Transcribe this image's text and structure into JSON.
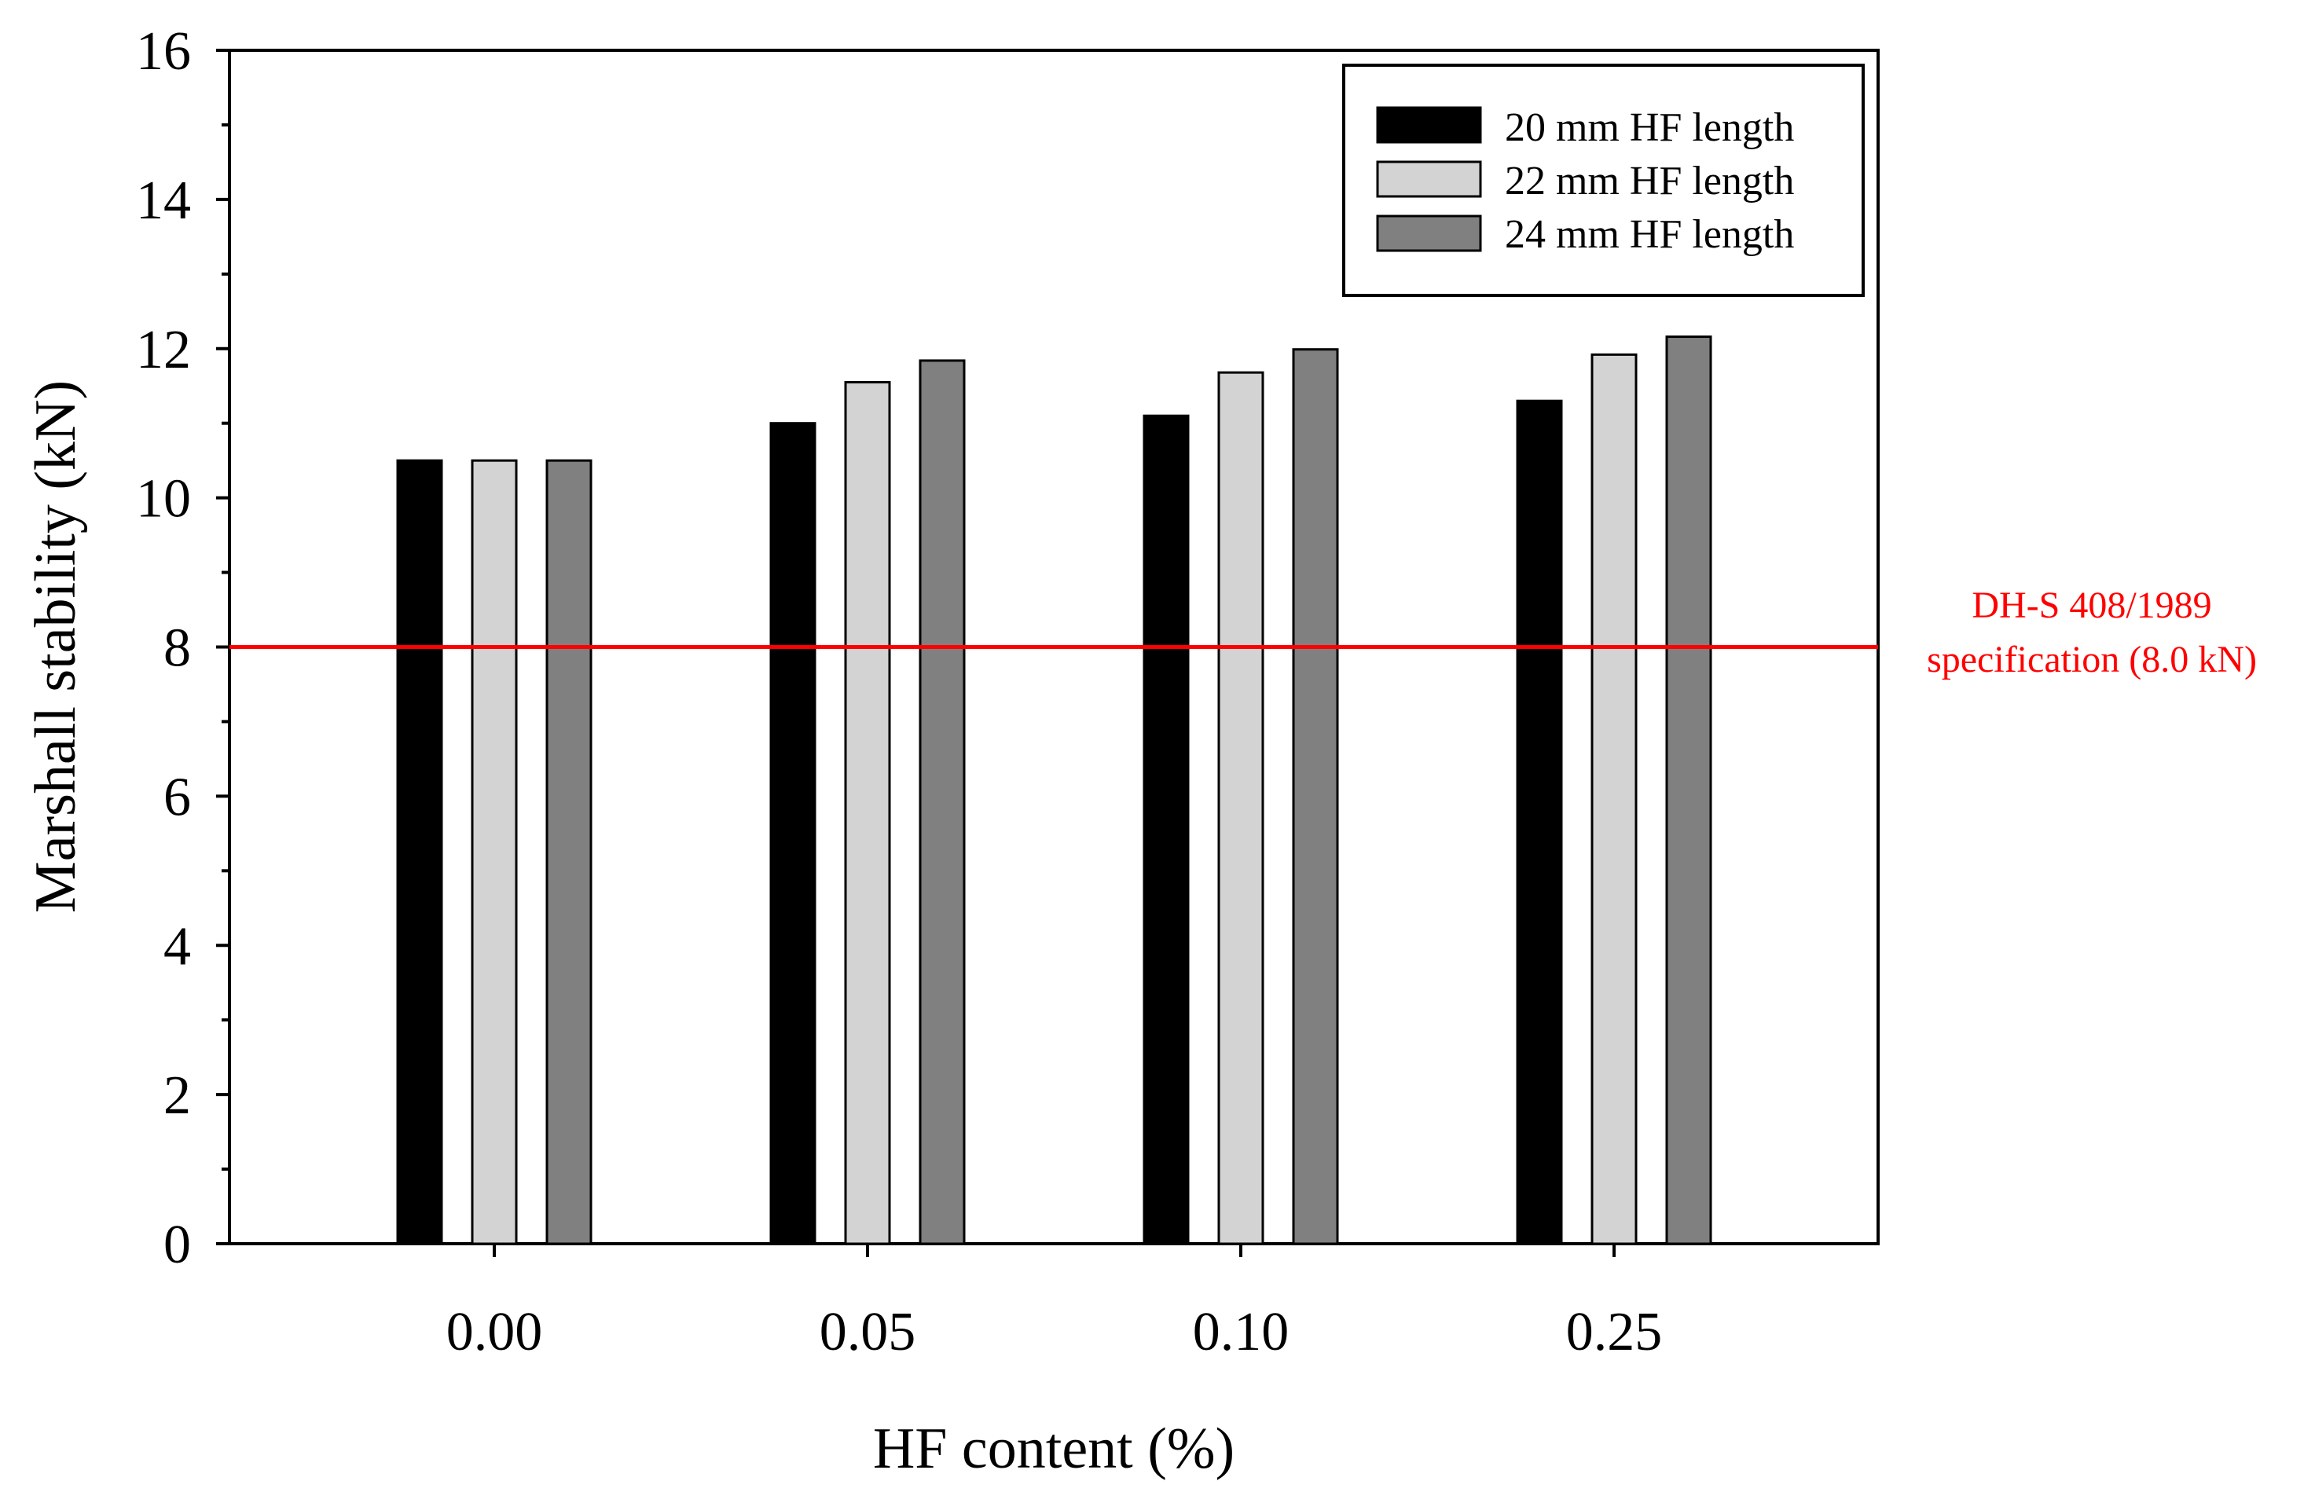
{
  "chart_data": {
    "type": "bar",
    "title": "",
    "xlabel": "HF content (%)",
    "ylabel": "Marshall stability (kN)",
    "categories": [
      "0.00",
      "0.05",
      "0.10",
      "0.25"
    ],
    "series": [
      {
        "name": "20 mm HF length",
        "color": "#000000",
        "values": [
          10.5,
          11.0,
          11.1,
          11.3
        ]
      },
      {
        "name": "22 mm HF length",
        "color": "#d3d3d3",
        "values": [
          10.5,
          11.55,
          11.68,
          11.92
        ]
      },
      {
        "name": "24 mm HF length",
        "color": "#808080",
        "values": [
          10.5,
          11.84,
          11.99,
          12.16
        ]
      }
    ],
    "ylim": [
      0,
      16
    ],
    "yticks": [
      "0",
      "2",
      "4",
      "6",
      "8",
      "10",
      "12",
      "14",
      "16"
    ],
    "grid": false,
    "legend_position": "top-right",
    "reference_line": {
      "value": 8.0,
      "color": "#ff0000",
      "label_line1": "DH-S 408/1989",
      "label_line2": "specification (8.0 kN)"
    }
  }
}
